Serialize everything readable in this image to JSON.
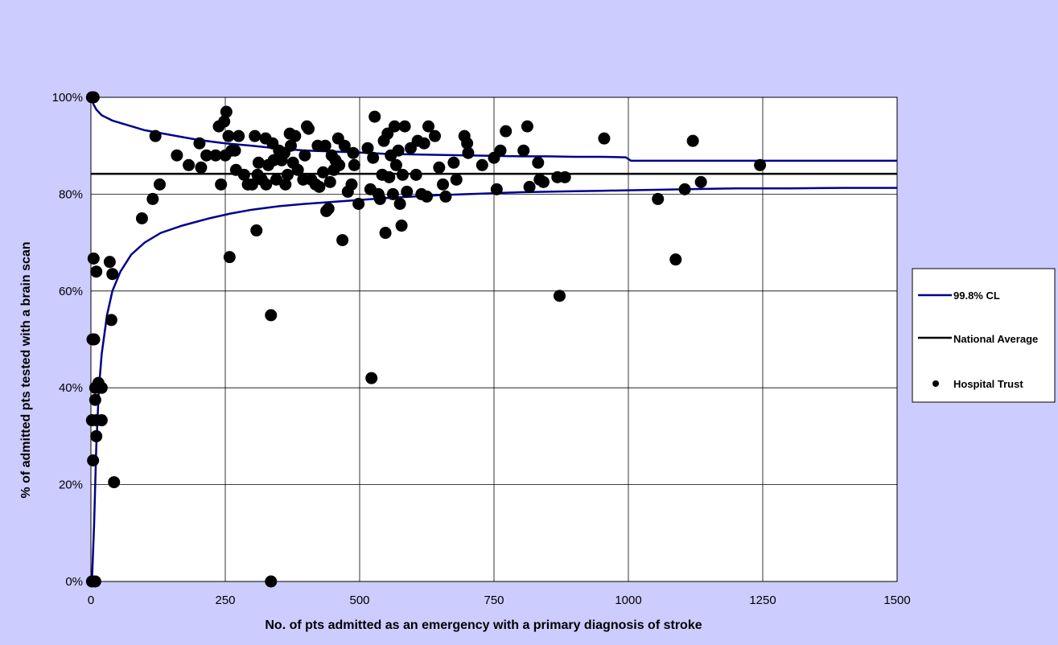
{
  "chart_data": {
    "type": "scatter",
    "title": "",
    "xlabel": "No. of pts admitted as an emergency with a primary diagnosis of stroke",
    "ylabel": "% of admitted pts tested with a brain scan",
    "xlim": [
      0,
      1500
    ],
    "ylim": [
      0,
      100
    ],
    "x_ticks": [
      0,
      250,
      500,
      750,
      1000,
      1250,
      1500
    ],
    "x_tick_labels": [
      "0",
      "250",
      "500",
      "750",
      "1000",
      "1250",
      "1500"
    ],
    "y_ticks": [
      0,
      20,
      40,
      60,
      80,
      100
    ],
    "y_tick_labels": [
      "0%",
      "20%",
      "40%",
      "60%",
      "80%",
      "100%"
    ],
    "grid": "major gridlines",
    "legend": {
      "placement": "right",
      "entries": [
        {
          "label": "99.8% CL",
          "kind": "line",
          "color": "#00008b"
        },
        {
          "label": "National Average",
          "kind": "line",
          "color": "#000000"
        },
        {
          "label": "Hospital Trust",
          "kind": "marker",
          "color": "#000000"
        }
      ]
    },
    "national_average": 84.2,
    "series": [
      {
        "name": "Hospital Trust",
        "type": "scatter",
        "color": "#000000",
        "points": [
          [
            2,
            100
          ],
          [
            5,
            100
          ],
          [
            2,
            0
          ],
          [
            8,
            0
          ],
          [
            3,
            50
          ],
          [
            6,
            50
          ],
          [
            2,
            33.3
          ],
          [
            20,
            33.3
          ],
          [
            4,
            25
          ],
          [
            8,
            37.5
          ],
          [
            10,
            30
          ],
          [
            14,
            41
          ],
          [
            20,
            40
          ],
          [
            8,
            40
          ],
          [
            5,
            66.7
          ],
          [
            10,
            64
          ],
          [
            35,
            66
          ],
          [
            40,
            63.5
          ],
          [
            38,
            54
          ],
          [
            43,
            20.5
          ],
          [
            10,
            33.3
          ],
          [
            95,
            75
          ],
          [
            115,
            79
          ],
          [
            120,
            92
          ],
          [
            128,
            82
          ],
          [
            160,
            88
          ],
          [
            182,
            86
          ],
          [
            202,
            90.5
          ],
          [
            205,
            85.5
          ],
          [
            215,
            88
          ],
          [
            232,
            88
          ],
          [
            238,
            94
          ],
          [
            242,
            82
          ],
          [
            248,
            95
          ],
          [
            250,
            88
          ],
          [
            252,
            97
          ],
          [
            256,
            92
          ],
          [
            258,
            67
          ],
          [
            262,
            89
          ],
          [
            268,
            89
          ],
          [
            270,
            85
          ],
          [
            275,
            92
          ],
          [
            285,
            84
          ],
          [
            292,
            82
          ],
          [
            300,
            82
          ],
          [
            305,
            92
          ],
          [
            308,
            72.5
          ],
          [
            310,
            84
          ],
          [
            312,
            86.5
          ],
          [
            318,
            83
          ],
          [
            325,
            91.5
          ],
          [
            326,
            82
          ],
          [
            330,
            86
          ],
          [
            335,
            55
          ],
          [
            335,
            0
          ],
          [
            338,
            90.5
          ],
          [
            340,
            87
          ],
          [
            345,
            83
          ],
          [
            350,
            89
          ],
          [
            355,
            87
          ],
          [
            360,
            88.5
          ],
          [
            362,
            82
          ],
          [
            366,
            84
          ],
          [
            370,
            92.5
          ],
          [
            372,
            90
          ],
          [
            376,
            86.5
          ],
          [
            380,
            92
          ],
          [
            385,
            85
          ],
          [
            395,
            83
          ],
          [
            398,
            88
          ],
          [
            402,
            94
          ],
          [
            405,
            93.5
          ],
          [
            410,
            83
          ],
          [
            418,
            82
          ],
          [
            422,
            90
          ],
          [
            425,
            81.5
          ],
          [
            432,
            84.5
          ],
          [
            436,
            90
          ],
          [
            438,
            76.5
          ],
          [
            442,
            77
          ],
          [
            445,
            82.5
          ],
          [
            448,
            88
          ],
          [
            452,
            85
          ],
          [
            455,
            87
          ],
          [
            460,
            91.5
          ],
          [
            462,
            86
          ],
          [
            468,
            70.5
          ],
          [
            472,
            90
          ],
          [
            478,
            80.5
          ],
          [
            485,
            82
          ],
          [
            488,
            88.5
          ],
          [
            490,
            86
          ],
          [
            498,
            78
          ],
          [
            515,
            89.5
          ],
          [
            520,
            81
          ],
          [
            522,
            42
          ],
          [
            525,
            87.5
          ],
          [
            528,
            96
          ],
          [
            535,
            80
          ],
          [
            538,
            79
          ],
          [
            542,
            84
          ],
          [
            545,
            91
          ],
          [
            548,
            72
          ],
          [
            552,
            92.5
          ],
          [
            555,
            83.5
          ],
          [
            558,
            88
          ],
          [
            562,
            80
          ],
          [
            565,
            94
          ],
          [
            568,
            86
          ],
          [
            572,
            89
          ],
          [
            575,
            78
          ],
          [
            578,
            73.5
          ],
          [
            580,
            84
          ],
          [
            584,
            94
          ],
          [
            588,
            80.5
          ],
          [
            595,
            89.5
          ],
          [
            605,
            84
          ],
          [
            608,
            91
          ],
          [
            615,
            80
          ],
          [
            620,
            90.5
          ],
          [
            625,
            79.5
          ],
          [
            628,
            94
          ],
          [
            640,
            92
          ],
          [
            648,
            85.5
          ],
          [
            655,
            82
          ],
          [
            660,
            79.5
          ],
          [
            675,
            86.5
          ],
          [
            680,
            83
          ],
          [
            695,
            92
          ],
          [
            700,
            90.5
          ],
          [
            702,
            88.5
          ],
          [
            728,
            86
          ],
          [
            750,
            87.5
          ],
          [
            755,
            81
          ],
          [
            762,
            89
          ],
          [
            772,
            93
          ],
          [
            805,
            89
          ],
          [
            812,
            94
          ],
          [
            816,
            81.5
          ],
          [
            832,
            86.5
          ],
          [
            835,
            83
          ],
          [
            842,
            82.5
          ],
          [
            868,
            83.5
          ],
          [
            872,
            59
          ],
          [
            882,
            83.5
          ],
          [
            955,
            91.5
          ],
          [
            1055,
            79
          ],
          [
            1088,
            66.5
          ],
          [
            1105,
            81
          ],
          [
            1120,
            91
          ],
          [
            1135,
            82.5
          ],
          [
            1245,
            86
          ]
        ]
      },
      {
        "name": "99.8% CL",
        "type": "line",
        "color": "#00008b",
        "segments": [
          {
            "label": "upper",
            "points": [
              [
                2,
                100
              ],
              [
                5,
                98.5
              ],
              [
                10,
                97.5
              ],
              [
                20,
                96.3
              ],
              [
                40,
                95.2
              ],
              [
                70,
                94.2
              ],
              [
                100,
                93.2
              ],
              [
                150,
                92.2
              ],
              [
                200,
                91.2
              ],
              [
                250,
                90.5
              ],
              [
                300,
                90
              ],
              [
                350,
                89.4
              ],
              [
                400,
                89
              ],
              [
                450,
                88.8
              ],
              [
                500,
                88.6
              ],
              [
                550,
                88.3
              ],
              [
                600,
                88.2
              ],
              [
                650,
                88.1
              ],
              [
                700,
                88
              ],
              [
                750,
                87.9
              ],
              [
                800,
                87.8
              ],
              [
                850,
                87.8
              ],
              [
                900,
                87.7
              ],
              [
                950,
                87.7
              ],
              [
                995,
                87.6
              ],
              [
                1005,
                86.9
              ],
              [
                1500,
                86.9
              ]
            ]
          },
          {
            "label": "lower",
            "points": [
              [
                2,
                0
              ],
              [
                6,
                12
              ],
              [
                10,
                28
              ],
              [
                15,
                40
              ],
              [
                20,
                47
              ],
              [
                30,
                55
              ],
              [
                40,
                60
              ],
              [
                55,
                64
              ],
              [
                75,
                67.5
              ],
              [
                100,
                70
              ],
              [
                130,
                72
              ],
              [
                170,
                73.5
              ],
              [
                220,
                75
              ],
              [
                260,
                76
              ],
              [
                300,
                76.8
              ],
              [
                350,
                77.5
              ],
              [
                400,
                78
              ],
              [
                450,
                78.4
              ],
              [
                500,
                78.8
              ],
              [
                550,
                79.2
              ],
              [
                600,
                79.5
              ],
              [
                650,
                79.8
              ],
              [
                700,
                80
              ],
              [
                750,
                80.2
              ],
              [
                800,
                80.4
              ],
              [
                850,
                80.5
              ],
              [
                900,
                80.6
              ],
              [
                950,
                80.7
              ],
              [
                1000,
                80.8
              ],
              [
                1100,
                81
              ],
              [
                1200,
                81.2
              ],
              [
                1300,
                81.2
              ],
              [
                1400,
                81.3
              ],
              [
                1500,
                81.3
              ]
            ]
          }
        ]
      }
    ]
  }
}
